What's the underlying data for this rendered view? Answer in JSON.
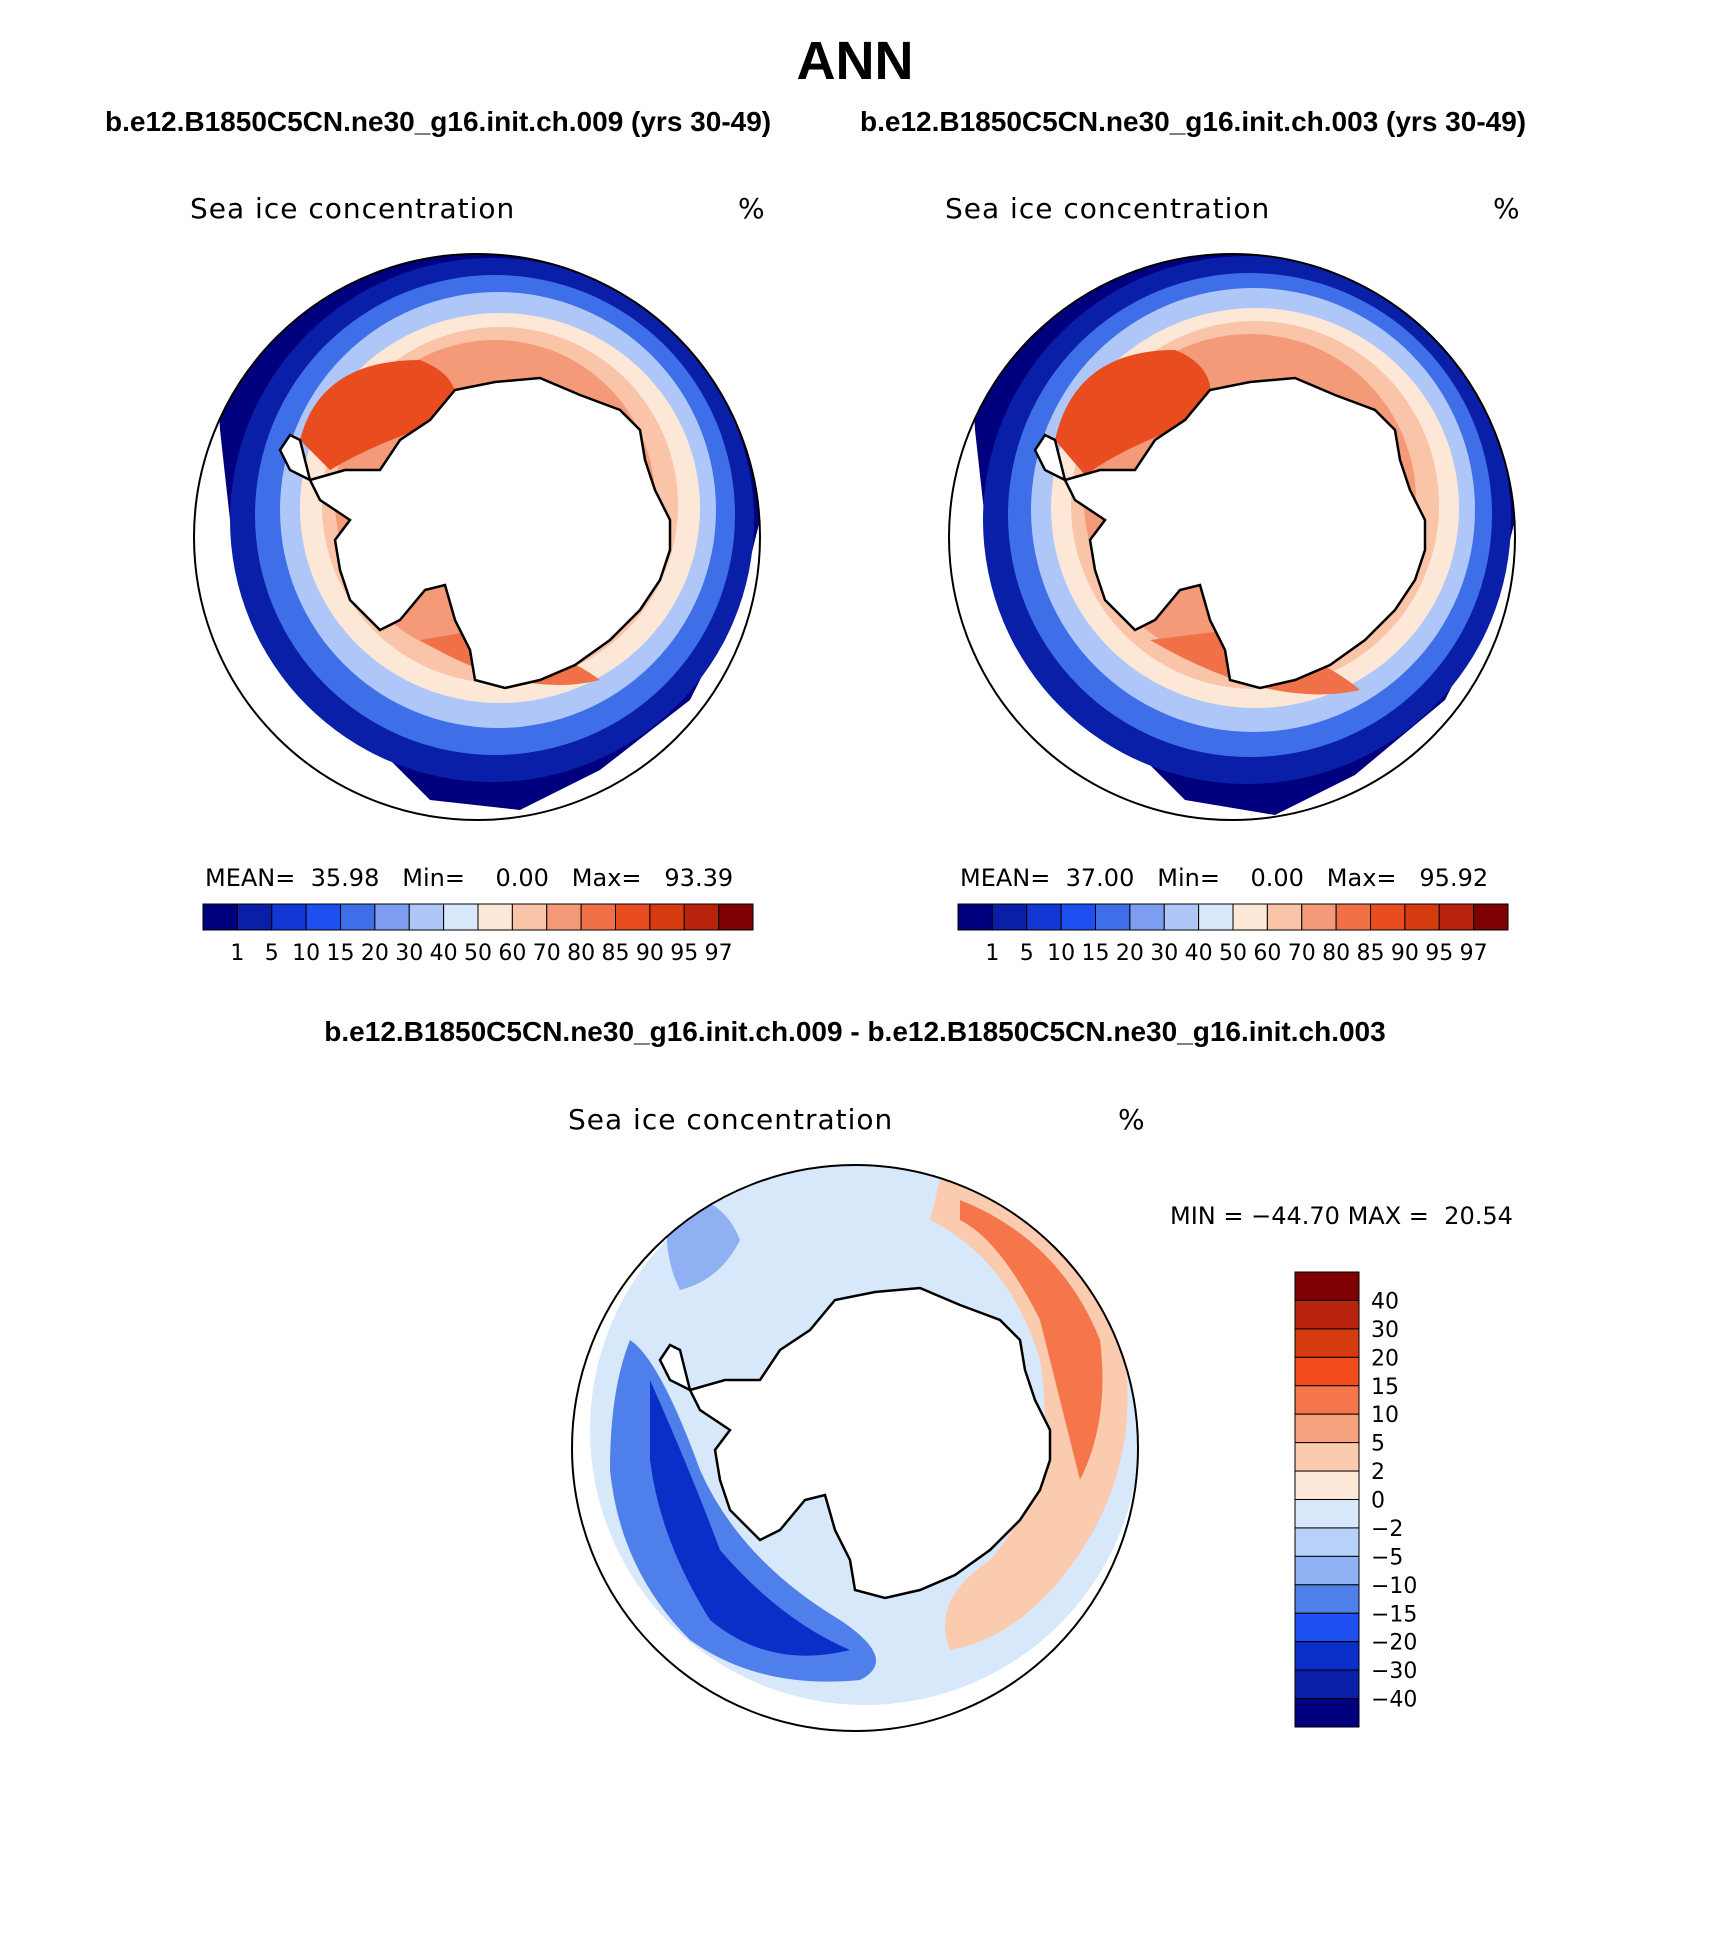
{
  "title": "ANN",
  "top_subtitle_left": "b.e12.B1850C5CN.ne30_g16.init.ch.009 (yrs 30-49)",
  "top_subtitle_right": "b.e12.B1850C5CN.ne30_g16.init.ch.003 (yrs 30-49)",
  "diff_subtitle": "b.e12.B1850C5CN.ne30_g16.init.ch.009 - b.e12.B1850C5CN.ne30_g16.init.ch.003",
  "panels": [
    {
      "variable": "Sea ice concentration",
      "units": "%",
      "mean_label": "MEAN=",
      "mean": "35.98",
      "min_label": "Min=",
      "min": "0.00",
      "max_label": "Max=",
      "max": "93.39"
    },
    {
      "variable": "Sea ice concentration",
      "units": "%",
      "mean_label": "MEAN=",
      "mean": "37.00",
      "min_label": "Min=",
      "min": "0.00",
      "max_label": "Max=",
      "max": "95.92"
    },
    {
      "variable": "Sea ice concentration",
      "units": "%",
      "min_label": "MIN =",
      "min": "−44.70",
      "max_label": "MAX =",
      "max": "20.54"
    }
  ],
  "abs_colorbar": {
    "labels": [
      "1",
      "5",
      "10",
      "15",
      "20",
      "30",
      "40",
      "50",
      "60",
      "70",
      "80",
      "85",
      "90",
      "95",
      "97"
    ],
    "colors": [
      "#00007f",
      "#0a1fa8",
      "#1237d4",
      "#1e4ff0",
      "#3f6fe8",
      "#7d9ef0",
      "#aec7f8",
      "#d8e8fb",
      "#fde8d8",
      "#f9c4a8",
      "#f49a78",
      "#f07048",
      "#e84c1f",
      "#d63a0f",
      "#b8230d",
      "#7f0000"
    ]
  },
  "diff_colorbar": {
    "labels": [
      "40",
      "30",
      "20",
      "15",
      "10",
      "5",
      "2",
      "0",
      "−2",
      "−5",
      "−10",
      "−15",
      "−20",
      "−30",
      "−40"
    ],
    "colors": [
      "#7f0000",
      "#b8230d",
      "#d63a0f",
      "#f24a1c",
      "#f4764a",
      "#f7a27e",
      "#fbcbb0",
      "#fde8d8",
      "#d8e8fb",
      "#b8d1f8",
      "#8fb0f2",
      "#4f7fea",
      "#1e4ff0",
      "#0a2fc8",
      "#0a1fa8",
      "#00007f"
    ]
  },
  "chart_data": [
    {
      "type": "map",
      "title": "Sea ice concentration (ch.009, yrs 30-49)",
      "units": "%",
      "mean": 35.98,
      "min": 0.0,
      "max": 93.39,
      "levels": [
        1,
        5,
        10,
        15,
        20,
        30,
        40,
        50,
        60,
        70,
        80,
        85,
        90,
        95,
        97
      ]
    },
    {
      "type": "map",
      "title": "Sea ice concentration (ch.003, yrs 30-49)",
      "units": "%",
      "mean": 37.0,
      "min": 0.0,
      "max": 95.92,
      "levels": [
        1,
        5,
        10,
        15,
        20,
        30,
        40,
        50,
        60,
        70,
        80,
        85,
        90,
        95,
        97
      ]
    },
    {
      "type": "map",
      "title": "Sea ice concentration difference (ch.009 - ch.003)",
      "units": "%",
      "min": -44.7,
      "max": 20.54,
      "levels": [
        -40,
        -30,
        -20,
        -15,
        -10,
        -5,
        -2,
        0,
        2,
        5,
        10,
        15,
        20,
        30,
        40
      ]
    }
  ]
}
